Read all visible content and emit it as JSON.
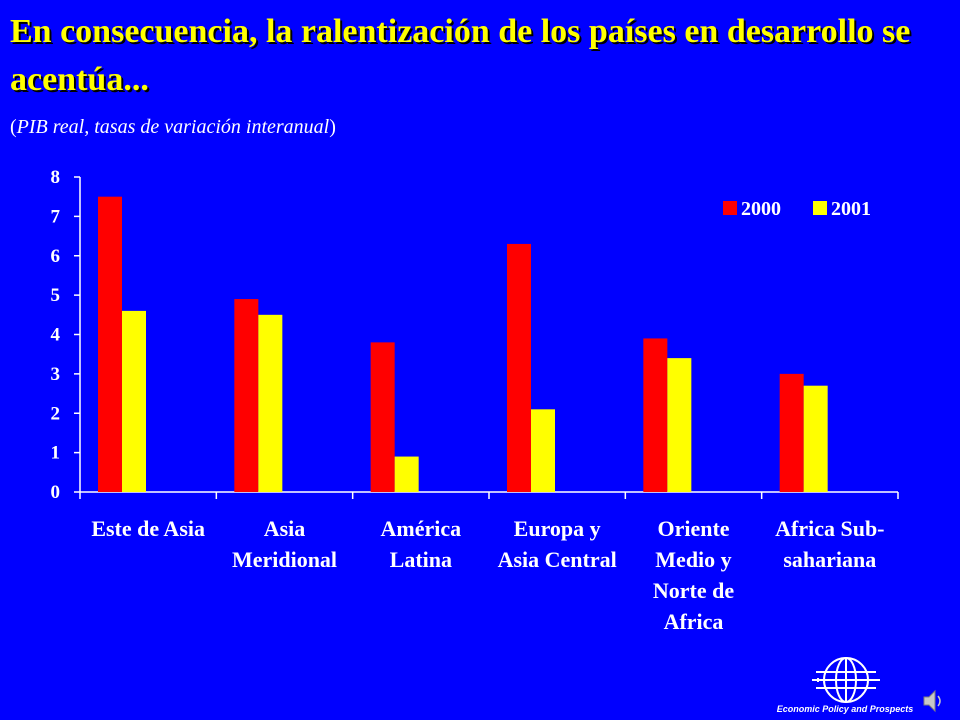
{
  "slide": {
    "title": "En consecuencia, la ralentización de los países en desarrollo se acentúa...",
    "subtitle_open": "(",
    "subtitle_italic": "PIB real, tasas de variación interanual",
    "subtitle_close": ")"
  },
  "colors": {
    "background": "#0000ff",
    "title": "#ffff00",
    "series_2000": "#ff0000",
    "series_2001": "#ffff00",
    "axis": "#ffffff"
  },
  "chart_data": {
    "type": "bar",
    "title": "",
    "xlabel": "",
    "ylabel": "",
    "ylim": [
      0,
      8
    ],
    "yticks": [
      0,
      1,
      2,
      3,
      4,
      5,
      6,
      7,
      8
    ],
    "grid": false,
    "legend": "top-right",
    "categories": [
      [
        "Este de Asia"
      ],
      [
        "Asia",
        "Meridional"
      ],
      [
        "América",
        "Latina"
      ],
      [
        "Europa y",
        "Asia Central"
      ],
      [
        "Oriente",
        "Medio y",
        "Norte de",
        "Africa"
      ],
      [
        "Africa Sub-",
        "sahariana"
      ]
    ],
    "series": [
      {
        "name": "2000",
        "color": "#ff0000",
        "values": [
          7.5,
          4.9,
          3.8,
          6.3,
          3.9,
          3.0
        ]
      },
      {
        "name": "2001",
        "color": "#ffff00",
        "values": [
          4.6,
          4.5,
          0.9,
          2.1,
          3.4,
          2.7
        ]
      }
    ]
  },
  "footer": {
    "logo_text": "Economic Policy and Prospects",
    "logo_icon": "globe-icon",
    "sound_icon": "speaker-icon"
  }
}
